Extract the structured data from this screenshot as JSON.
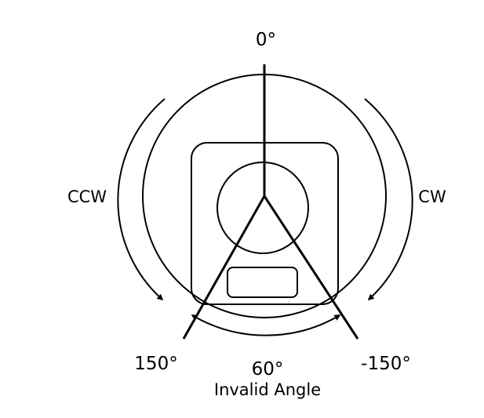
{
  "labels": {
    "top_angle": "0°",
    "left_direction": "CCW",
    "right_direction": "CW",
    "left_limit": "150°",
    "right_limit": "-150°",
    "gap_angle": "60°",
    "gap_note": "Invalid Angle"
  },
  "colors": {
    "stroke": "#000000",
    "background": "#ffffff"
  }
}
